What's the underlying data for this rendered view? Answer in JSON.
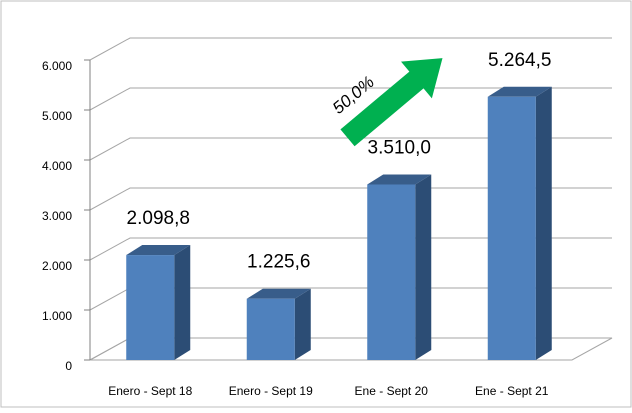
{
  "chart_data": {
    "type": "bar3d",
    "categories": [
      "Enero - Sept 18",
      "Enero - Sept 19",
      "Ene - Sept 20",
      "Ene - Sept 21"
    ],
    "values": [
      2098.8,
      1225.6,
      3510.0,
      5264.5
    ],
    "value_labels": [
      "2.098,8",
      "1.225,6",
      "3.510,0",
      "5.264,5"
    ],
    "color": "#4f81bd",
    "ylim": [
      0,
      6000
    ],
    "yticks": [
      0,
      {
        "value": 1000,
        "label": "1.000"
      },
      {
        "value": 2000,
        "label": "2.000"
      },
      {
        "value": 3000,
        "label": "3.000"
      },
      {
        "value": 4000,
        "label": "4.000"
      },
      {
        "value": 5000,
        "label": "5.000"
      },
      {
        "value": 6000,
        "label": "6.000"
      }
    ],
    "grid": true,
    "annotations": [
      {
        "text": "50,0%",
        "color": "#00b050"
      }
    ]
  }
}
